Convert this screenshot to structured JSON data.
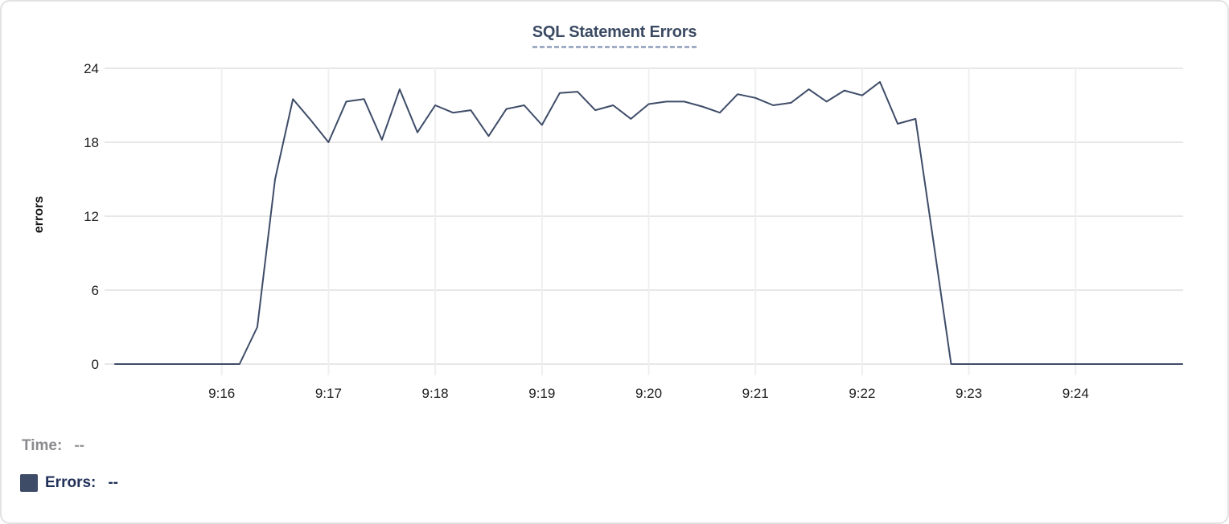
{
  "chart_data": {
    "type": "line",
    "title": "SQL Statement Errors",
    "xlabel": "",
    "ylabel": "errors",
    "ylim": [
      0,
      24
    ],
    "yticks": [
      0,
      6,
      12,
      18,
      24
    ],
    "xticks": [
      "9:16",
      "9:17",
      "9:18",
      "9:19",
      "9:20",
      "9:21",
      "9:22",
      "9:23",
      "9:24"
    ],
    "x_start": "9:15:00",
    "x_end": "9:25:00",
    "grid": true,
    "legend_position": "bottom-left",
    "series": [
      {
        "name": "Errors",
        "color": "#3e4c68",
        "points": [
          [
            "9:15:00",
            0
          ],
          [
            "9:15:10",
            0
          ],
          [
            "9:15:20",
            0
          ],
          [
            "9:15:30",
            0
          ],
          [
            "9:15:40",
            0
          ],
          [
            "9:15:50",
            0
          ],
          [
            "9:16:00",
            0
          ],
          [
            "9:16:10",
            0
          ],
          [
            "9:16:20",
            3
          ],
          [
            "9:16:30",
            15
          ],
          [
            "9:16:40",
            21.5
          ],
          [
            "9:16:50",
            19.8
          ],
          [
            "9:17:00",
            18
          ],
          [
            "9:17:10",
            21.3
          ],
          [
            "9:17:20",
            21.5
          ],
          [
            "9:17:30",
            18.2
          ],
          [
            "9:17:40",
            22.3
          ],
          [
            "9:17:50",
            18.8
          ],
          [
            "9:18:00",
            21
          ],
          [
            "9:18:10",
            20.4
          ],
          [
            "9:18:20",
            20.6
          ],
          [
            "9:18:30",
            18.5
          ],
          [
            "9:18:40",
            20.7
          ],
          [
            "9:18:50",
            21
          ],
          [
            "9:19:00",
            19.4
          ],
          [
            "9:19:10",
            22
          ],
          [
            "9:19:20",
            22.1
          ],
          [
            "9:19:30",
            20.6
          ],
          [
            "9:19:40",
            21
          ],
          [
            "9:19:50",
            19.9
          ],
          [
            "9:20:00",
            21.1
          ],
          [
            "9:20:10",
            21.3
          ],
          [
            "9:20:20",
            21.3
          ],
          [
            "9:20:30",
            20.9
          ],
          [
            "9:20:40",
            20.4
          ],
          [
            "9:20:50",
            21.9
          ],
          [
            "9:21:00",
            21.6
          ],
          [
            "9:21:10",
            21
          ],
          [
            "9:21:20",
            21.2
          ],
          [
            "9:21:30",
            22.3
          ],
          [
            "9:21:40",
            21.3
          ],
          [
            "9:21:50",
            22.2
          ],
          [
            "9:22:00",
            21.8
          ],
          [
            "9:22:10",
            22.9
          ],
          [
            "9:22:20",
            19.5
          ],
          [
            "9:22:30",
            19.9
          ],
          [
            "9:22:40",
            10
          ],
          [
            "9:22:50",
            0
          ],
          [
            "9:23:00",
            0
          ],
          [
            "9:23:10",
            0
          ],
          [
            "9:23:20",
            0
          ],
          [
            "9:23:30",
            0
          ],
          [
            "9:23:40",
            0
          ],
          [
            "9:23:50",
            0
          ],
          [
            "9:24:00",
            0
          ],
          [
            "9:24:10",
            0
          ],
          [
            "9:24:20",
            0
          ],
          [
            "9:24:30",
            0
          ],
          [
            "9:24:40",
            0
          ],
          [
            "9:24:50",
            0
          ],
          [
            "9:25:00",
            0
          ]
        ]
      }
    ]
  },
  "legend": {
    "time_label": "Time:",
    "time_value": "--",
    "errors_label": "Errors:",
    "errors_value": "--"
  },
  "colors": {
    "line": "#3e4c68",
    "title": "#3b4a63",
    "title_underline": "#9fadc6",
    "grid_horizontal": "#e7e7e7",
    "grid_vertical": "#efefef",
    "tick_text": "#1b1b1b",
    "time_text": "#8a8a8f",
    "errors_text": "#22315a",
    "card_border": "#e2e2e2"
  }
}
